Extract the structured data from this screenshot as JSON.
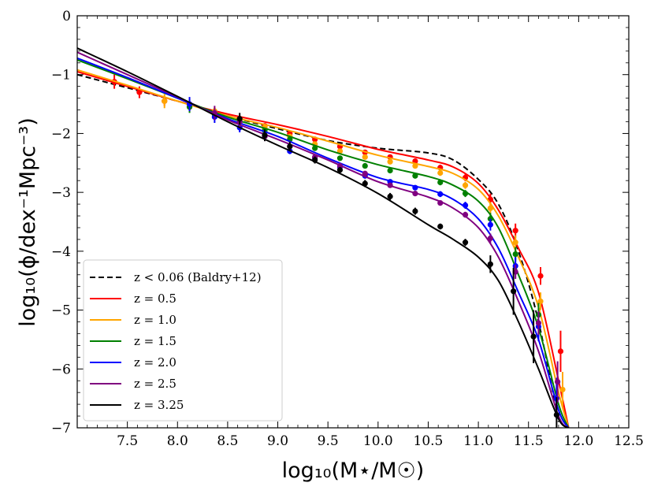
{
  "chart_data": {
    "type": "line",
    "xlabel": "log₁₀(M⋆/M☉)",
    "ylabel": "log₁₀(ϕ/dex⁻¹Mpc⁻³)",
    "xlim": [
      7.0,
      12.5
    ],
    "ylim": [
      -7,
      0
    ],
    "x_ticks": [
      "7.5",
      "8.0",
      "8.5",
      "9.0",
      "9.5",
      "10.0",
      "10.5",
      "11.0",
      "11.5",
      "12.0",
      "12.5"
    ],
    "y_ticks": [
      "0",
      "−1",
      "−2",
      "−3",
      "−4",
      "−5",
      "−6",
      "−7"
    ],
    "legend_position": "lower-left",
    "reference": {
      "name": "z < 0.06 (Baldry+12)",
      "color": "#000000",
      "dashed": true,
      "curve_x": [
        7.0,
        8.0,
        8.5,
        9.0,
        9.5,
        10.0,
        10.5,
        10.75,
        11.0,
        11.2,
        11.4,
        11.6,
        11.8
      ],
      "curve_y": [
        -1.0,
        -1.45,
        -1.7,
        -1.92,
        -2.12,
        -2.25,
        -2.33,
        -2.45,
        -2.78,
        -3.2,
        -4.0,
        -5.2,
        -6.9
      ]
    },
    "series": [
      {
        "name": "z = 0.5",
        "color": "#ff0000",
        "curve_x": [
          7.0,
          7.5,
          8.0,
          8.5,
          9.0,
          9.5,
          10.0,
          10.5,
          10.75,
          11.0,
          11.2,
          11.4,
          11.6,
          11.8,
          11.9
        ],
        "curve_y": [
          -0.95,
          -1.2,
          -1.45,
          -1.67,
          -1.85,
          -2.05,
          -2.27,
          -2.45,
          -2.57,
          -2.85,
          -3.3,
          -3.95,
          -4.7,
          -6.2,
          -7.0
        ],
        "points_x": [
          7.37,
          7.62,
          7.87,
          8.12,
          8.37,
          8.62,
          8.87,
          9.12,
          9.37,
          9.62,
          9.87,
          10.12,
          10.37,
          10.62,
          10.87,
          11.12,
          11.37,
          11.62,
          11.82
        ],
        "points_y": [
          -1.12,
          -1.3,
          -1.45,
          -1.55,
          -1.65,
          -1.75,
          -1.87,
          -2.0,
          -2.1,
          -2.22,
          -2.32,
          -2.4,
          -2.47,
          -2.58,
          -2.75,
          -3.12,
          -3.65,
          -4.42,
          -5.7
        ],
        "errors": [
          0.12,
          0.1,
          0.08,
          0.06,
          0.05,
          0.05,
          0.04,
          0.04,
          0.04,
          0.04,
          0.04,
          0.04,
          0.04,
          0.05,
          0.06,
          0.1,
          0.12,
          0.15,
          0.35
        ]
      },
      {
        "name": "z = 1.0",
        "color": "#ffa500",
        "curve_x": [
          7.0,
          7.5,
          8.0,
          8.5,
          9.0,
          9.5,
          10.0,
          10.5,
          10.75,
          11.0,
          11.2,
          11.4,
          11.6,
          11.8,
          11.9
        ],
        "curve_y": [
          -0.92,
          -1.18,
          -1.45,
          -1.7,
          -1.9,
          -2.13,
          -2.37,
          -2.56,
          -2.68,
          -2.95,
          -3.4,
          -4.1,
          -4.95,
          -6.4,
          -7.0
        ],
        "points_x": [
          7.87,
          8.12,
          8.37,
          8.62,
          8.87,
          9.12,
          9.37,
          9.62,
          9.87,
          10.12,
          10.37,
          10.62,
          10.87,
          11.12,
          11.37,
          11.62,
          11.84
        ],
        "points_y": [
          -1.45,
          -1.52,
          -1.62,
          -1.75,
          -1.9,
          -2.05,
          -2.18,
          -2.3,
          -2.4,
          -2.48,
          -2.55,
          -2.67,
          -2.88,
          -3.27,
          -3.85,
          -4.85,
          -6.35
        ],
        "errors": [
          0.12,
          0.1,
          0.07,
          0.05,
          0.04,
          0.04,
          0.04,
          0.04,
          0.04,
          0.04,
          0.04,
          0.05,
          0.06,
          0.1,
          0.12,
          0.15,
          0.3
        ]
      },
      {
        "name": "z = 1.5",
        "color": "#008000",
        "curve_x": [
          7.0,
          7.5,
          8.0,
          8.5,
          9.0,
          9.5,
          10.0,
          10.5,
          10.75,
          11.0,
          11.2,
          11.4,
          11.6,
          11.8,
          11.9
        ],
        "curve_y": [
          -0.75,
          -1.07,
          -1.4,
          -1.72,
          -1.98,
          -2.28,
          -2.53,
          -2.73,
          -2.88,
          -3.15,
          -3.6,
          -4.4,
          -5.3,
          -6.6,
          -7.0
        ],
        "points_x": [
          8.12,
          8.37,
          8.62,
          8.87,
          9.12,
          9.37,
          9.62,
          9.87,
          10.12,
          10.37,
          10.62,
          10.87,
          11.12,
          11.37,
          11.6
        ],
        "points_y": [
          -1.55,
          -1.68,
          -1.8,
          -1.95,
          -2.1,
          -2.25,
          -2.42,
          -2.55,
          -2.63,
          -2.72,
          -2.83,
          -3.02,
          -3.45,
          -4.05,
          -5.08
        ],
        "errors": [
          0.1,
          0.08,
          0.06,
          0.05,
          0.04,
          0.04,
          0.04,
          0.04,
          0.04,
          0.04,
          0.05,
          0.06,
          0.1,
          0.12,
          0.2
        ]
      },
      {
        "name": "z = 2.0",
        "color": "#0000ff",
        "curve_x": [
          7.0,
          7.5,
          8.0,
          8.5,
          9.0,
          9.5,
          10.0,
          10.5,
          10.75,
          11.0,
          11.2,
          11.4,
          11.6,
          11.8,
          11.9
        ],
        "curve_y": [
          -0.72,
          -1.05,
          -1.4,
          -1.75,
          -2.05,
          -2.42,
          -2.75,
          -2.95,
          -3.12,
          -3.45,
          -3.95,
          -4.7,
          -5.5,
          -6.7,
          -7.0
        ],
        "points_x": [
          8.12,
          8.37,
          8.62,
          8.87,
          9.12,
          9.37,
          9.62,
          9.87,
          10.12,
          10.37,
          10.62,
          10.87,
          11.12,
          11.37,
          11.6,
          11.78
        ],
        "points_y": [
          -1.5,
          -1.72,
          -1.9,
          -2.05,
          -2.3,
          -2.42,
          -2.57,
          -2.72,
          -2.82,
          -2.92,
          -3.03,
          -3.22,
          -3.55,
          -4.25,
          -5.28,
          -6.5
        ],
        "errors": [
          0.12,
          0.1,
          0.08,
          0.06,
          0.05,
          0.05,
          0.04,
          0.04,
          0.04,
          0.04,
          0.05,
          0.06,
          0.1,
          0.15,
          0.25,
          0.35
        ]
      },
      {
        "name": "z = 2.5",
        "color": "#800080",
        "curve_x": [
          7.0,
          7.5,
          8.0,
          8.5,
          9.0,
          9.5,
          10.0,
          10.5,
          10.75,
          11.0,
          11.2,
          11.4,
          11.6,
          11.8,
          11.9
        ],
        "curve_y": [
          -0.62,
          -1.0,
          -1.38,
          -1.77,
          -2.1,
          -2.45,
          -2.82,
          -3.08,
          -3.27,
          -3.6,
          -4.1,
          -4.85,
          -5.7,
          -6.8,
          -7.0
        ],
        "points_x": [
          8.37,
          8.62,
          8.87,
          9.12,
          9.37,
          9.62,
          9.87,
          10.12,
          10.37,
          10.62,
          10.87,
          11.12,
          11.37,
          11.6,
          11.79
        ],
        "points_y": [
          -1.65,
          -1.8,
          -2.05,
          -2.22,
          -2.4,
          -2.55,
          -2.68,
          -2.88,
          -3.02,
          -3.18,
          -3.38,
          -3.78,
          -4.35,
          -5.22,
          -6.22
        ],
        "errors": [
          0.12,
          0.1,
          0.08,
          0.06,
          0.05,
          0.05,
          0.04,
          0.04,
          0.04,
          0.04,
          0.05,
          0.08,
          0.12,
          0.2,
          0.35
        ]
      },
      {
        "name": "z = 3.25",
        "color": "#000000",
        "curve_x": [
          7.0,
          7.5,
          8.0,
          8.5,
          9.0,
          9.5,
          10.0,
          10.5,
          10.75,
          11.0,
          11.2,
          11.4,
          11.6,
          11.8,
          11.9
        ],
        "curve_y": [
          -0.55,
          -0.95,
          -1.37,
          -1.8,
          -2.2,
          -2.58,
          -3.02,
          -3.55,
          -3.8,
          -4.1,
          -4.5,
          -5.2,
          -6.0,
          -6.85,
          -7.0
        ],
        "points_x": [
          8.62,
          8.87,
          9.12,
          9.37,
          9.62,
          9.87,
          10.12,
          10.37,
          10.62,
          10.87,
          11.12,
          11.35,
          11.55,
          11.78
        ],
        "points_y": [
          -1.75,
          -2.03,
          -2.22,
          -2.45,
          -2.62,
          -2.85,
          -3.07,
          -3.32,
          -3.58,
          -3.85,
          -4.22,
          -4.68,
          -5.45,
          -6.78
        ],
        "errors": [
          0.1,
          0.1,
          0.08,
          0.06,
          0.05,
          0.06,
          0.06,
          0.06,
          0.05,
          0.06,
          0.15,
          0.4,
          0.45,
          0.3
        ]
      }
    ]
  }
}
